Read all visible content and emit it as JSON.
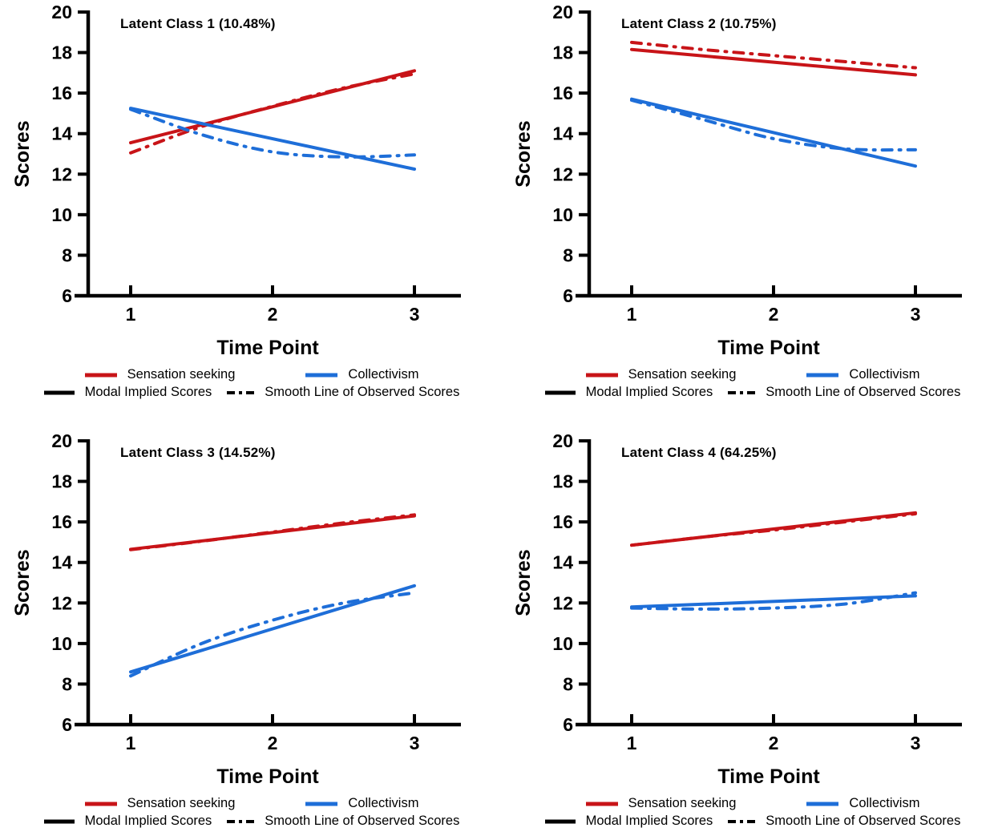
{
  "figure": {
    "xlabel": "Time Point",
    "ylabel": "Scores"
  },
  "colors": {
    "sensation_seeking": "#C81418",
    "collectivism": "#1E6ED8",
    "axis": "#000000",
    "background": "#FFFFFF"
  },
  "legend": {
    "series_labels": [
      "Sensation seeking",
      "Collectivism"
    ],
    "style_labels": [
      "Modal Implied Scores",
      "Smooth Line of Observed Scores"
    ]
  },
  "chart_data": [
    {
      "type": "line",
      "title": "Latent Class 1 (10.48%)",
      "xlabel": "Time Point",
      "ylabel": "Scores",
      "xticks": [
        1,
        2,
        3
      ],
      "yticks": [
        6,
        8,
        10,
        12,
        14,
        16,
        18,
        20
      ],
      "xlim": [
        0.6,
        3.33
      ],
      "ylim": [
        6,
        20
      ],
      "grid": false,
      "legend_position": "bottom",
      "series": [
        {
          "variable": "Sensation seeking",
          "line_type": "Modal Implied Scores",
          "style": "solid",
          "color_key": "sensation_seeking",
          "x": [
            1,
            3
          ],
          "y": [
            13.55,
            17.1
          ]
        },
        {
          "variable": "Sensation seeking",
          "line_type": "Smooth Line of Observed Scores",
          "style": "dashdot",
          "color_key": "sensation_seeking",
          "x": [
            1,
            1.5,
            2,
            2.5,
            3
          ],
          "y": [
            13.05,
            14.35,
            15.35,
            16.25,
            16.95
          ]
        },
        {
          "variable": "Collectivism",
          "line_type": "Modal Implied Scores",
          "style": "solid",
          "color_key": "collectivism",
          "x": [
            1,
            3
          ],
          "y": [
            15.25,
            12.25
          ]
        },
        {
          "variable": "Collectivism",
          "line_type": "Smooth Line of Observed Scores",
          "style": "dashdot",
          "color_key": "collectivism",
          "x": [
            1,
            1.5,
            2,
            2.5,
            3
          ],
          "y": [
            15.2,
            13.95,
            13.1,
            12.85,
            12.95
          ]
        }
      ]
    },
    {
      "type": "line",
      "title": "Latent Class 2 (10.75%)",
      "xlabel": "Time Point",
      "ylabel": "Scores",
      "xticks": [
        1,
        2,
        3
      ],
      "yticks": [
        6,
        8,
        10,
        12,
        14,
        16,
        18,
        20
      ],
      "xlim": [
        0.6,
        3.33
      ],
      "ylim": [
        6,
        20
      ],
      "grid": false,
      "legend_position": "bottom",
      "series": [
        {
          "variable": "Sensation seeking",
          "line_type": "Modal Implied Scores",
          "style": "solid",
          "color_key": "sensation_seeking",
          "x": [
            1,
            3
          ],
          "y": [
            18.15,
            16.9
          ]
        },
        {
          "variable": "Sensation seeking",
          "line_type": "Smooth Line of Observed Scores",
          "style": "dashdot",
          "color_key": "sensation_seeking",
          "x": [
            1,
            1.5,
            2,
            2.5,
            3
          ],
          "y": [
            18.5,
            18.15,
            17.85,
            17.55,
            17.25
          ]
        },
        {
          "variable": "Collectivism",
          "line_type": "Modal Implied Scores",
          "style": "solid",
          "color_key": "collectivism",
          "x": [
            1,
            3
          ],
          "y": [
            15.7,
            12.4
          ]
        },
        {
          "variable": "Collectivism",
          "line_type": "Smooth Line of Observed Scores",
          "style": "dashdot",
          "color_key": "collectivism",
          "x": [
            1,
            1.5,
            2,
            2.5,
            3
          ],
          "y": [
            15.65,
            14.7,
            13.75,
            13.25,
            13.2
          ]
        }
      ]
    },
    {
      "type": "line",
      "title": "Latent Class 3 (14.52%)",
      "xlabel": "Time Point",
      "ylabel": "Scores",
      "xticks": [
        1,
        2,
        3
      ],
      "yticks": [
        6,
        8,
        10,
        12,
        14,
        16,
        18,
        20
      ],
      "xlim": [
        0.6,
        3.33
      ],
      "ylim": [
        6,
        20
      ],
      "grid": false,
      "legend_position": "bottom",
      "series": [
        {
          "variable": "Sensation seeking",
          "line_type": "Modal Implied Scores",
          "style": "solid",
          "color_key": "sensation_seeking",
          "x": [
            1,
            3
          ],
          "y": [
            14.65,
            16.3
          ]
        },
        {
          "variable": "Sensation seeking",
          "line_type": "Smooth Line of Observed Scores",
          "style": "dashdot",
          "color_key": "sensation_seeking",
          "x": [
            1,
            1.5,
            2,
            2.5,
            3
          ],
          "y": [
            14.63,
            15.05,
            15.5,
            15.95,
            16.35
          ]
        },
        {
          "variable": "Collectivism",
          "line_type": "Modal Implied Scores",
          "style": "solid",
          "color_key": "collectivism",
          "x": [
            1,
            3
          ],
          "y": [
            8.6,
            12.85
          ]
        },
        {
          "variable": "Collectivism",
          "line_type": "Smooth Line of Observed Scores",
          "style": "dashdot",
          "color_key": "collectivism",
          "x": [
            1,
            1.5,
            2,
            2.5,
            3
          ],
          "y": [
            8.4,
            10.0,
            11.15,
            12.0,
            12.5
          ]
        }
      ]
    },
    {
      "type": "line",
      "title": "Latent Class 4 (64.25%)",
      "xlabel": "Time Point",
      "ylabel": "Scores",
      "xticks": [
        1,
        2,
        3
      ],
      "yticks": [
        6,
        8,
        10,
        12,
        14,
        16,
        18,
        20
      ],
      "xlim": [
        0.6,
        3.33
      ],
      "ylim": [
        6,
        20
      ],
      "grid": false,
      "legend_position": "bottom",
      "series": [
        {
          "variable": "Sensation seeking",
          "line_type": "Modal Implied Scores",
          "style": "solid",
          "color_key": "sensation_seeking",
          "x": [
            1,
            3
          ],
          "y": [
            14.85,
            16.45
          ]
        },
        {
          "variable": "Sensation seeking",
          "line_type": "Smooth Line of Observed Scores",
          "style": "dashdot",
          "color_key": "sensation_seeking",
          "x": [
            1,
            1.5,
            2,
            2.5,
            3
          ],
          "y": [
            14.85,
            15.25,
            15.6,
            16.0,
            16.4
          ]
        },
        {
          "variable": "Collectivism",
          "line_type": "Modal Implied Scores",
          "style": "solid",
          "color_key": "collectivism",
          "x": [
            1,
            3
          ],
          "y": [
            11.8,
            12.35
          ]
        },
        {
          "variable": "Collectivism",
          "line_type": "Smooth Line of Observed Scores",
          "style": "dashdot",
          "color_key": "collectivism",
          "x": [
            1,
            1.5,
            2,
            2.5,
            3
          ],
          "y": [
            11.75,
            11.7,
            11.75,
            11.95,
            12.5
          ]
        }
      ]
    }
  ]
}
